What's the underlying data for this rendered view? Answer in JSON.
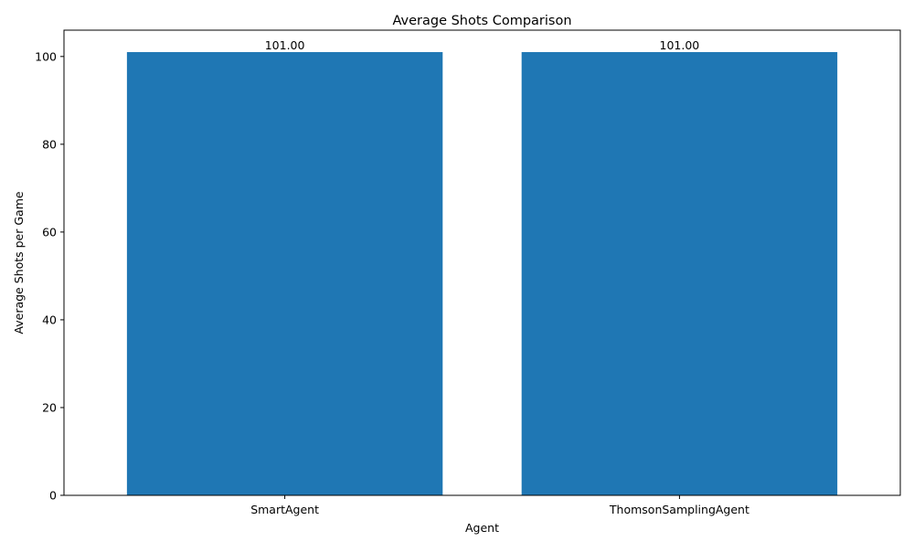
{
  "chart_data": {
    "type": "bar",
    "title": "Average Shots Comparison",
    "xlabel": "Agent",
    "ylabel": "Average Shots per Game",
    "categories": [
      "SmartAgent",
      "ThomsonSamplingAgent"
    ],
    "values": [
      101.0,
      101.0
    ],
    "value_labels": [
      "101.00",
      "101.00"
    ],
    "ylim": [
      0,
      106
    ],
    "yticks": [
      0,
      20,
      40,
      60,
      80,
      100
    ],
    "bar_color": "#1f77b4",
    "grid": false,
    "legend": "none"
  }
}
